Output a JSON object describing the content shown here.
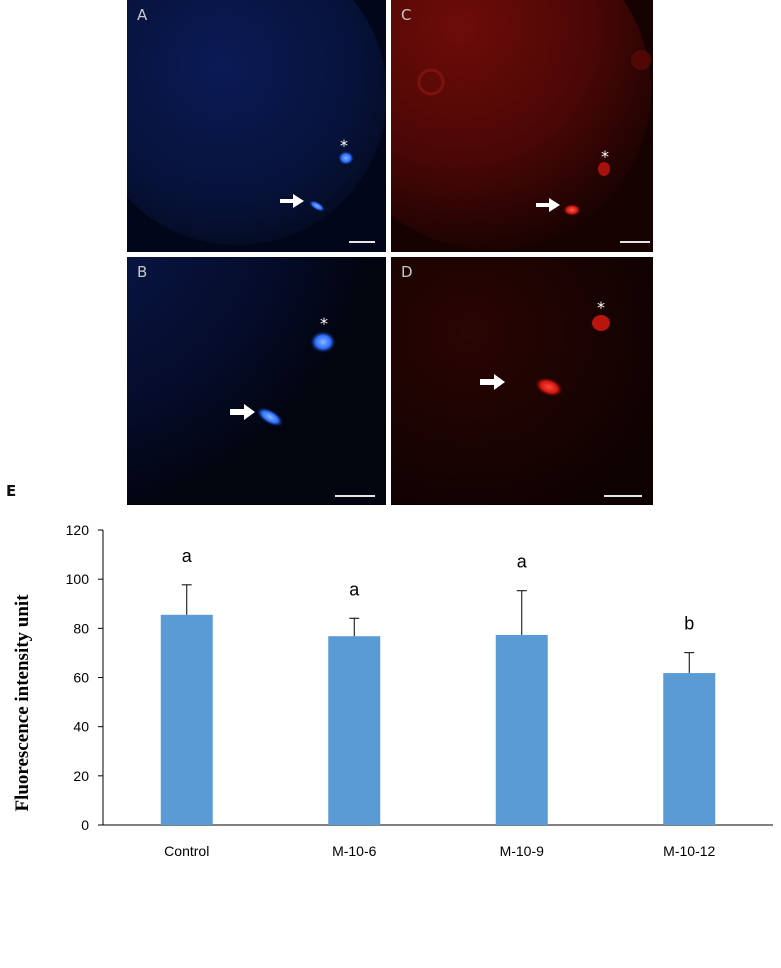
{
  "panels": [
    {
      "id": "A",
      "label": "A",
      "color": "blue"
    },
    {
      "id": "B",
      "label": "B",
      "color": "blue"
    },
    {
      "id": "C",
      "label": "C",
      "color": "red"
    },
    {
      "id": "D",
      "label": "D",
      "color": "red"
    }
  ],
  "panel_e_label": "E",
  "chart_data": {
    "type": "bar",
    "categories": [
      "Control",
      "M-10-6",
      "M-10-9",
      "M-10-12"
    ],
    "values": [
      85.5,
      76.8,
      77.3,
      61.8
    ],
    "errors": [
      12.2,
      7.3,
      18.0,
      8.3
    ],
    "letters": [
      "a",
      "a",
      "a",
      "b"
    ],
    "ylabel": "Fluorescence intensity unit",
    "xlabel": "",
    "ylim": [
      0,
      120
    ],
    "yticks": [
      0,
      20,
      40,
      60,
      80,
      100,
      120
    ],
    "bar_color": "#5b9bd5",
    "grid": false
  }
}
